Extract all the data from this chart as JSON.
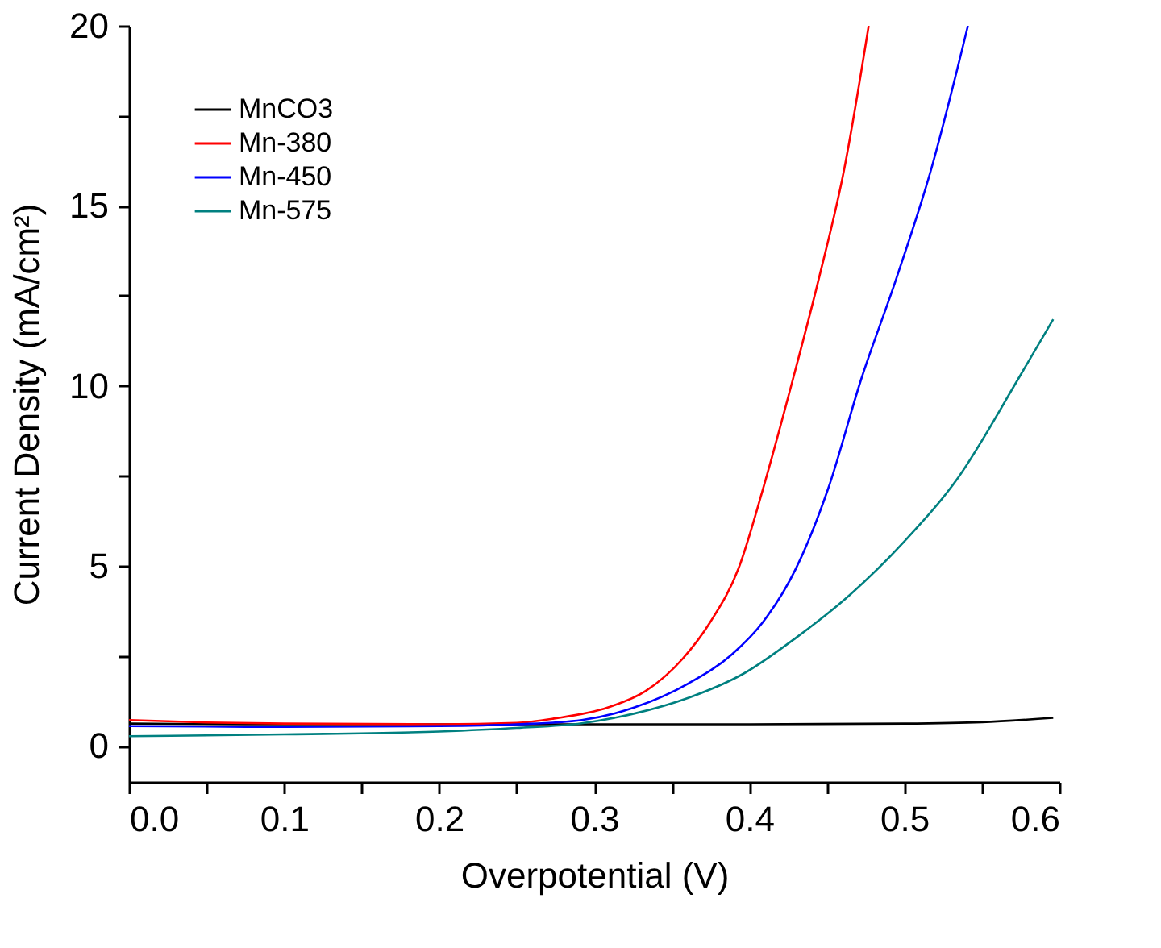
{
  "chart_data": {
    "type": "line",
    "xlabel": "Overpotential (V)",
    "ylabel": "Current Density (mA/cm²)",
    "xlim": [
      0,
      0.6
    ],
    "ylim": [
      -1,
      20
    ],
    "xticks": [
      {
        "value": 0,
        "label": "0.0"
      },
      {
        "value": 0.05,
        "label": null
      },
      0.1,
      {
        "value": 0.15,
        "label": null
      },
      0.2,
      {
        "value": 0.25,
        "label": null
      },
      0.3,
      {
        "value": 0.35,
        "label": null
      },
      0.4,
      {
        "value": 0.45,
        "label": null
      },
      0.5,
      {
        "value": 0.55,
        "label": null
      },
      0.6
    ],
    "yticks": [
      0,
      {
        "value": 2.5,
        "label": null
      },
      5,
      {
        "value": 7.5,
        "label": null
      },
      10,
      {
        "value": 12.5,
        "label": null
      },
      15,
      {
        "value": 17.5,
        "label": null
      },
      20
    ],
    "grid": false,
    "legend": "top left",
    "line_style": "solid",
    "marker": "none",
    "series": [
      {
        "name": "MnCO3",
        "color": "#000000",
        "x": [
          0.0,
          0.1,
          0.2,
          0.3,
          0.4,
          0.5,
          0.55,
          0.596
        ],
        "values": [
          0.62,
          0.6,
          0.6,
          0.6,
          0.6,
          0.62,
          0.66,
          0.78
        ]
      },
      {
        "name": "Mn-380",
        "color": "#ff0000",
        "x": [
          0.0,
          0.05,
          0.1,
          0.2,
          0.25,
          0.274,
          0.309,
          0.333,
          0.357,
          0.375,
          0.393,
          0.409,
          0.428,
          0.445,
          0.461,
          0.477
        ],
        "values": [
          0.72,
          0.65,
          0.62,
          0.6,
          0.64,
          0.76,
          1.07,
          1.52,
          2.42,
          3.45,
          4.92,
          7.16,
          10.16,
          13.0,
          15.97,
          20
        ]
      },
      {
        "name": "Mn-450",
        "color": "#0000ff",
        "x": [
          0.0,
          0.1,
          0.2,
          0.25,
          0.292,
          0.326,
          0.361,
          0.389,
          0.409,
          0.43,
          0.451,
          0.472,
          0.495,
          0.517,
          0.541
        ],
        "values": [
          0.55,
          0.53,
          0.55,
          0.6,
          0.72,
          1.07,
          1.74,
          2.55,
          3.45,
          4.92,
          7.16,
          10.16,
          13.0,
          15.97,
          20
        ]
      },
      {
        "name": "Mn-575",
        "color": "#008080",
        "x": [
          0.0,
          0.1,
          0.2,
          0.25,
          0.292,
          0.326,
          0.361,
          0.396,
          0.43,
          0.465,
          0.5,
          0.535,
          0.573,
          0.596
        ],
        "values": [
          0.27,
          0.32,
          0.4,
          0.5,
          0.63,
          0.9,
          1.34,
          2.0,
          3.0,
          4.2,
          5.68,
          7.47,
          10.16,
          11.85
        ]
      }
    ]
  }
}
